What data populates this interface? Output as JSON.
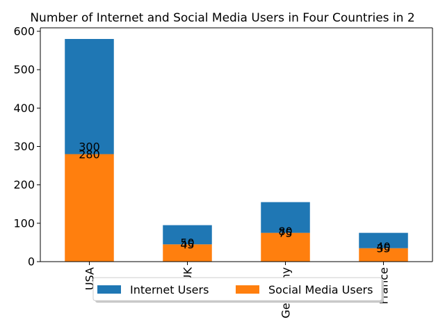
{
  "chart_data": {
    "type": "bar",
    "stacked": true,
    "title": "Number of Internet and Social Media Users in Four Countries in 2",
    "xlabel": "",
    "ylabel": "",
    "categories": [
      "USA",
      "UK",
      "Germany",
      "France"
    ],
    "series": [
      {
        "name": "Social Media Users",
        "values": [
          280,
          45,
          75,
          35
        ],
        "color": "#ff7f0e"
      },
      {
        "name": "Internet Users",
        "values": [
          300,
          50,
          80,
          40
        ],
        "color": "#1f77b4"
      }
    ],
    "ylim": [
      0,
      609
    ],
    "yticks": [
      "0",
      "100",
      "200",
      "300",
      "400",
      "500",
      "600"
    ],
    "grid": false,
    "legend_placement": "bottom-center",
    "legend_order": [
      "Internet Users",
      "Social Media Users"
    ]
  }
}
